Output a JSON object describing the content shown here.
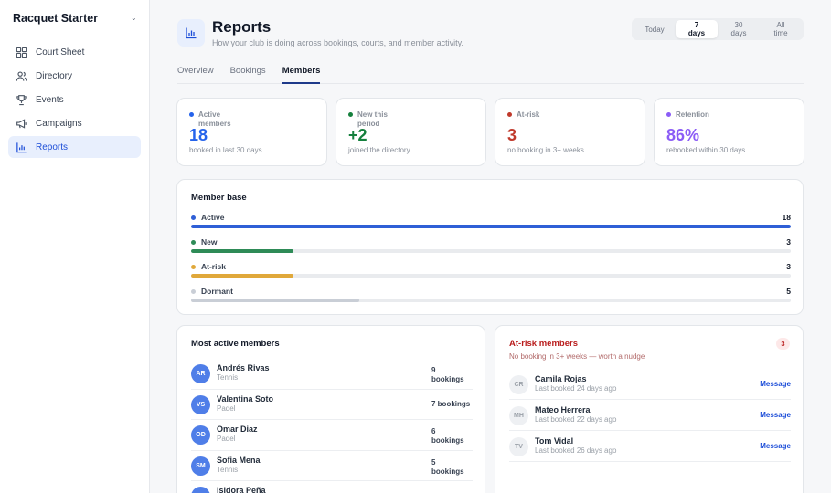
{
  "app": {
    "name": "Racquet Starter"
  },
  "sidebar": {
    "items": [
      {
        "label": "Court Sheet",
        "icon": "grid-icon"
      },
      {
        "label": "Directory",
        "icon": "users-icon"
      },
      {
        "label": "Events",
        "icon": "trophy-icon"
      },
      {
        "label": "Campaigns",
        "icon": "megaphone-icon"
      },
      {
        "label": "Reports",
        "icon": "bar-chart-icon",
        "active": true
      }
    ]
  },
  "header": {
    "title": "Reports",
    "subtitle": "How your club is doing across bookings, courts, and member activity.",
    "range": [
      {
        "line1": "Today",
        "line2": "",
        "active": false
      },
      {
        "line1": "7",
        "line2": "days",
        "active": true
      },
      {
        "line1": "30",
        "line2": "days",
        "active": false
      },
      {
        "line1": "All",
        "line2": "time",
        "active": false
      }
    ]
  },
  "tabs": [
    {
      "label": "Overview",
      "active": false
    },
    {
      "label": "Bookings",
      "active": false
    },
    {
      "label": "Members",
      "active": true
    }
  ],
  "kpis": [
    {
      "label": "Active members",
      "value": "18",
      "sub": "booked in last 30 days",
      "color": "#2563eb"
    },
    {
      "label": "New this period",
      "value": "+2",
      "sub": "joined the directory",
      "color": "#15803d"
    },
    {
      "label": "At-risk",
      "value": "3",
      "sub": "no booking in 3+ weeks",
      "color": "#c0392b"
    },
    {
      "label": "Retention",
      "value": "86%",
      "sub": "rebooked within 30 days",
      "color": "#8b5cf6"
    }
  ],
  "member_base": {
    "title": "Member base",
    "rows": [
      {
        "label": "Active",
        "value": "18",
        "fraction": 1.0,
        "color": "#2f5fd6"
      },
      {
        "label": "New",
        "value": "3",
        "fraction": 0.17,
        "color": "#2e8b57"
      },
      {
        "label": "At-risk",
        "value": "3",
        "fraction": 0.17,
        "color": "#e0a83a"
      },
      {
        "label": "Dormant",
        "value": "5",
        "fraction": 0.28,
        "color": "#c9ced6"
      }
    ]
  },
  "most_active": {
    "title": "Most active members",
    "members": [
      {
        "initials": "AR",
        "name": "Andrés Rivas",
        "sport": "Tennis",
        "count_line1": "9",
        "count_line2": "bookings"
      },
      {
        "initials": "VS",
        "name": "Valentina Soto",
        "sport": "Padel",
        "count_line1": "7 bookings",
        "count_line2": ""
      },
      {
        "initials": "OD",
        "name": "Omar Diaz",
        "sport": "Padel",
        "count_line1": "6",
        "count_line2": "bookings"
      },
      {
        "initials": "SM",
        "name": "Sofia Mena",
        "sport": "Tennis",
        "count_line1": "5",
        "count_line2": "bookings"
      },
      {
        "initials": "IP",
        "name": "Isidora Peña",
        "sport": "",
        "count_line1": "",
        "count_line2": ""
      }
    ]
  },
  "at_risk": {
    "title": "At-risk members",
    "subtitle": "No booking in 3+ weeks — worth a nudge",
    "count": "3",
    "action_label": "Message",
    "members": [
      {
        "initials": "CR",
        "name": "Camila Rojas",
        "last": "Last booked 24 days ago"
      },
      {
        "initials": "MH",
        "name": "Mateo Herrera",
        "last": "Last booked 22 days ago"
      },
      {
        "initials": "TV",
        "name": "Tom Vidal",
        "last": "Last booked 26 days ago"
      }
    ]
  }
}
